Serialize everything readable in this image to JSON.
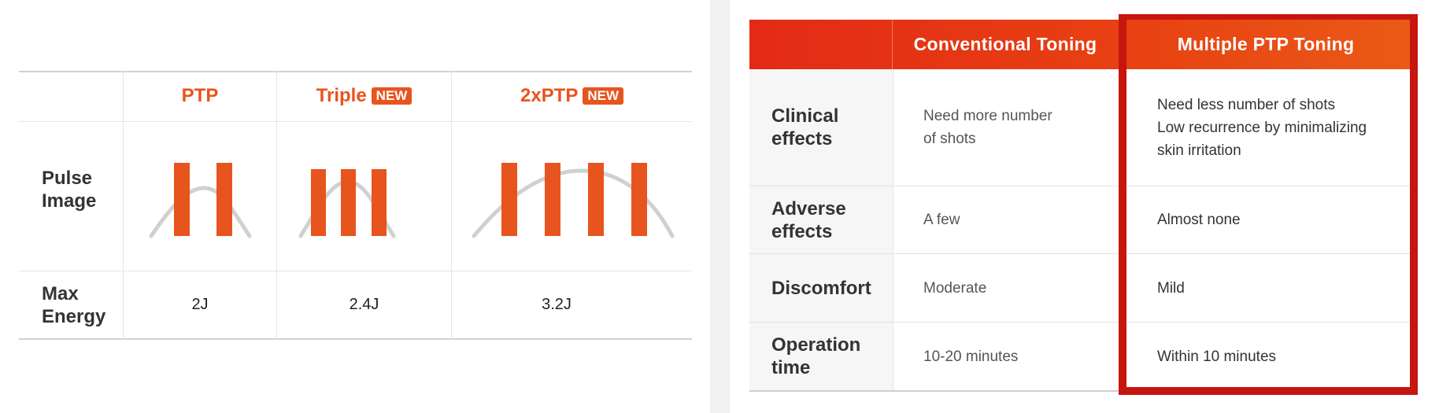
{
  "left_table": {
    "columns": [
      {
        "label": "PTP",
        "badge": ""
      },
      {
        "label": "Triple",
        "badge": "NEW"
      },
      {
        "label": "2xPTP",
        "badge": "NEW"
      }
    ],
    "rows": {
      "pulse_image": {
        "label_line1": "Pulse",
        "label_line2": "Image"
      },
      "max_energy": {
        "label_line1": "Max",
        "label_line2": "Energy",
        "values": [
          "2J",
          "2.4J",
          "3.2J"
        ]
      }
    },
    "pulse_counts": [
      2,
      3,
      4
    ],
    "colors": {
      "accent": "#e8541e",
      "curve": "#d0d0d0"
    }
  },
  "right_table": {
    "headers": [
      "Conventional Toning",
      "Multiple PTP Toning"
    ],
    "rows": [
      {
        "label_line1": "Clinical",
        "label_line2": "effects",
        "conventional_line1": "Need more number",
        "conventional_line2": "of shots",
        "multiple_line1": "Need less number of shots",
        "multiple_line2": "Low recurrence by minimalizing",
        "multiple_line3": "skin irritation"
      },
      {
        "label_line1": "Adverse",
        "label_line2": "effects",
        "conventional": "A few",
        "multiple": "Almost none"
      },
      {
        "label_line1": "Discomfort",
        "label_line2": "",
        "conventional": "Moderate",
        "multiple": "Mild"
      },
      {
        "label_line1": "Operation",
        "label_line2": "time",
        "conventional": "10-20 minutes",
        "multiple": "Within 10 minutes"
      }
    ],
    "colors": {
      "header_start": "#e32a16",
      "header_end": "#ea5a17",
      "highlight_frame": "#c71510"
    }
  }
}
